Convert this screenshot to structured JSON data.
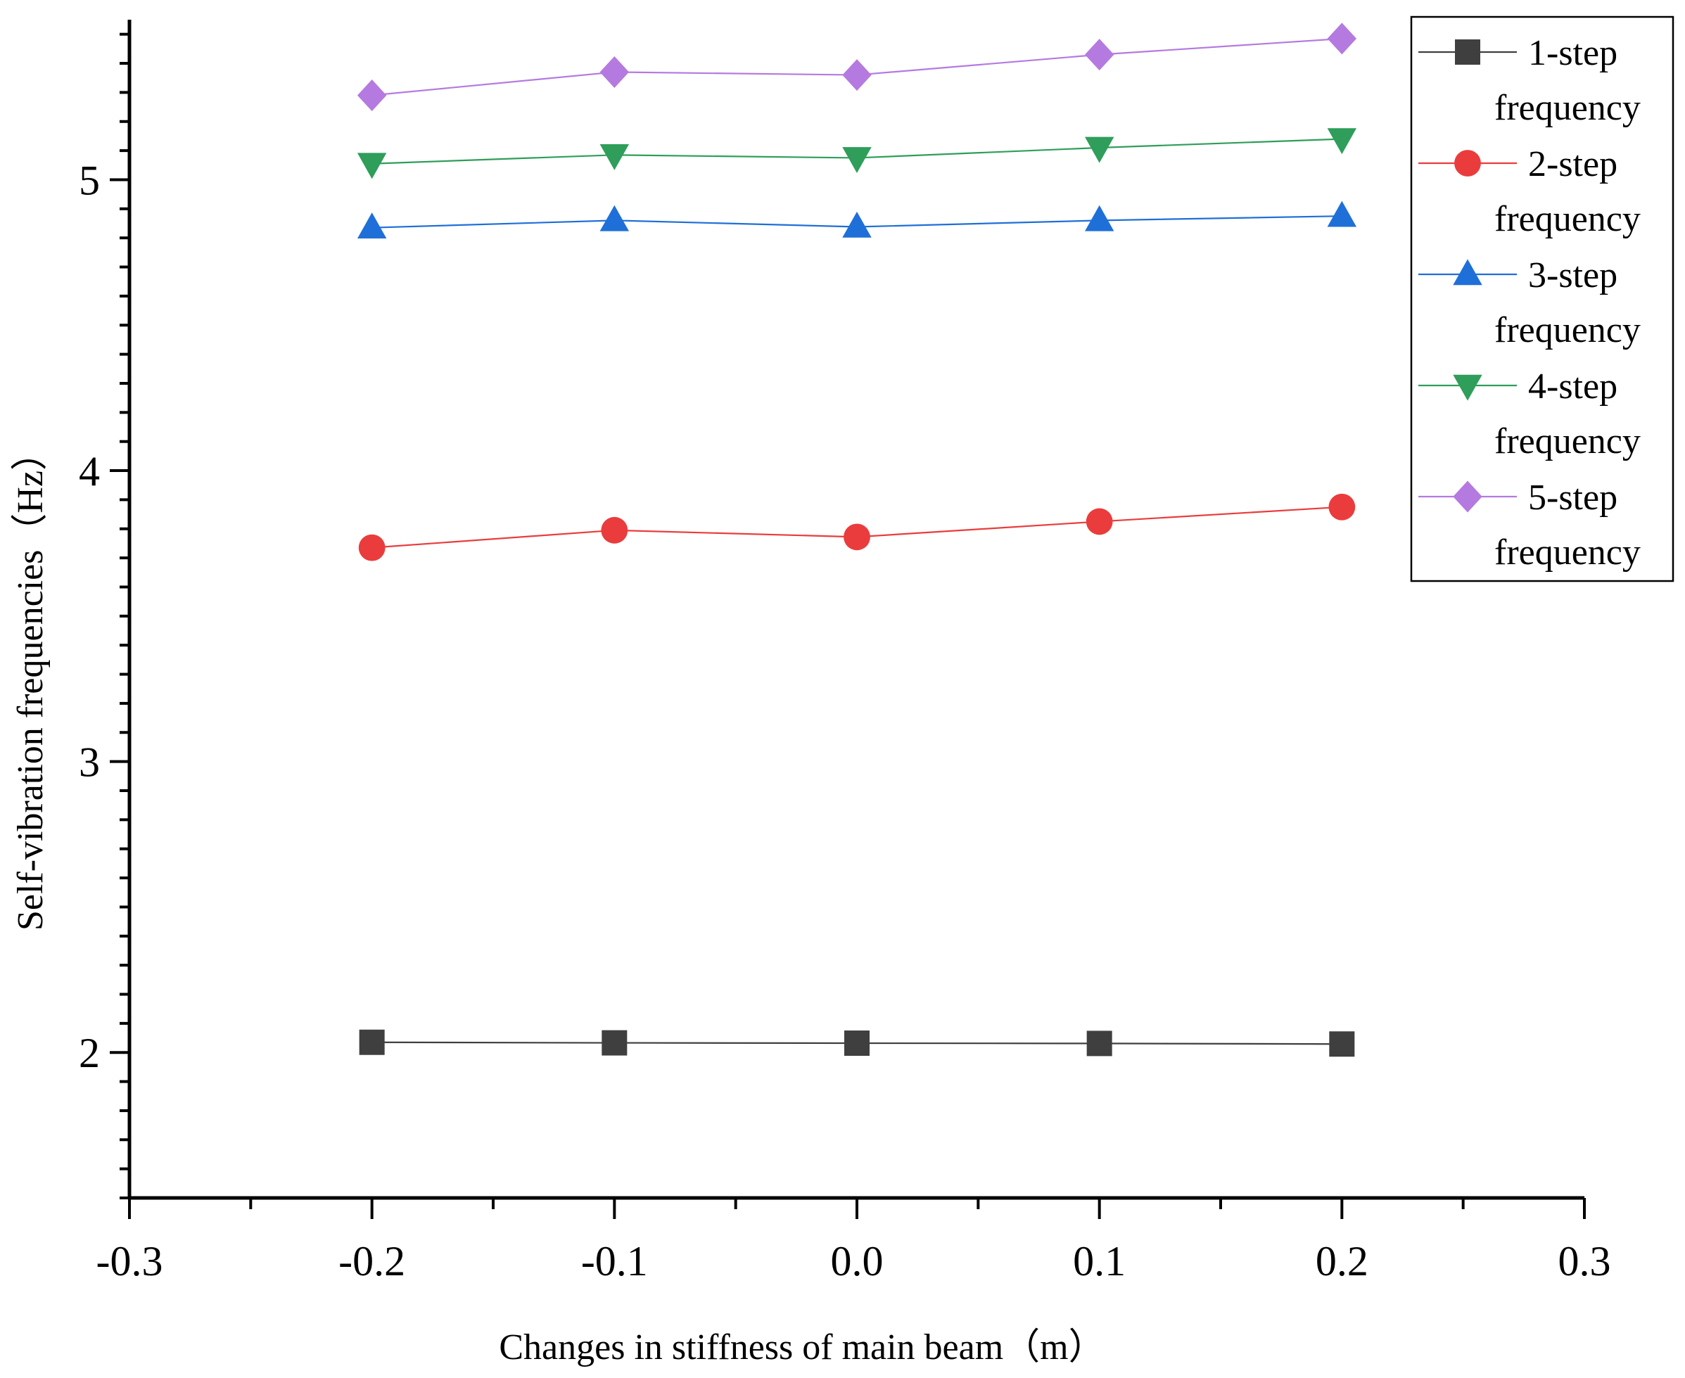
{
  "chart_data": {
    "type": "line",
    "title": "",
    "xlabel": "Changes in stiffness of main beam（m）",
    "ylabel": "Self-vibration frequencies（Hz）",
    "xlim": [
      -0.3,
      0.3
    ],
    "ylim": [
      1.5,
      5.55
    ],
    "xticks": [
      -0.3,
      -0.2,
      -0.1,
      0.0,
      0.1,
      0.2,
      0.3
    ],
    "xtick_labels": [
      "-0.3",
      "-0.2",
      "-0.1",
      "0.0",
      "0.1",
      "0.2",
      "0.3"
    ],
    "yticks": [
      2,
      3,
      4,
      5
    ],
    "ytick_labels": [
      "2",
      "3",
      "4",
      "5"
    ],
    "legend_position": "top-right",
    "grid": false,
    "x": [
      -0.2,
      -0.1,
      0.0,
      0.1,
      0.2
    ],
    "series": [
      {
        "name": "1-step frequency",
        "label_line1": "1-step",
        "label_line2": "frequency",
        "color": "#3f3f3f",
        "marker": "square",
        "values": [
          2.035,
          2.033,
          2.032,
          2.031,
          2.029
        ]
      },
      {
        "name": "2-step frequency",
        "label_line1": "2-step",
        "label_line2": "frequency",
        "color": "#ea3c3c",
        "marker": "circle",
        "values": [
          3.735,
          3.795,
          3.772,
          3.825,
          3.875
        ]
      },
      {
        "name": "3-step frequency",
        "label_line1": "3-step",
        "label_line2": "frequency",
        "color": "#1f6fd8",
        "marker": "triangle-up",
        "values": [
          4.835,
          4.86,
          4.838,
          4.86,
          4.875
        ]
      },
      {
        "name": "4-step frequency",
        "label_line1": "4-step",
        "label_line2": "frequency",
        "color": "#2e9e5a",
        "marker": "triangle-down",
        "values": [
          5.055,
          5.085,
          5.075,
          5.11,
          5.14
        ]
      },
      {
        "name": "5-step frequency",
        "label_line1": "5-step",
        "label_line2": "frequency",
        "color": "#b57ae0",
        "marker": "diamond",
        "values": [
          5.29,
          5.37,
          5.36,
          5.43,
          5.485
        ]
      }
    ]
  }
}
